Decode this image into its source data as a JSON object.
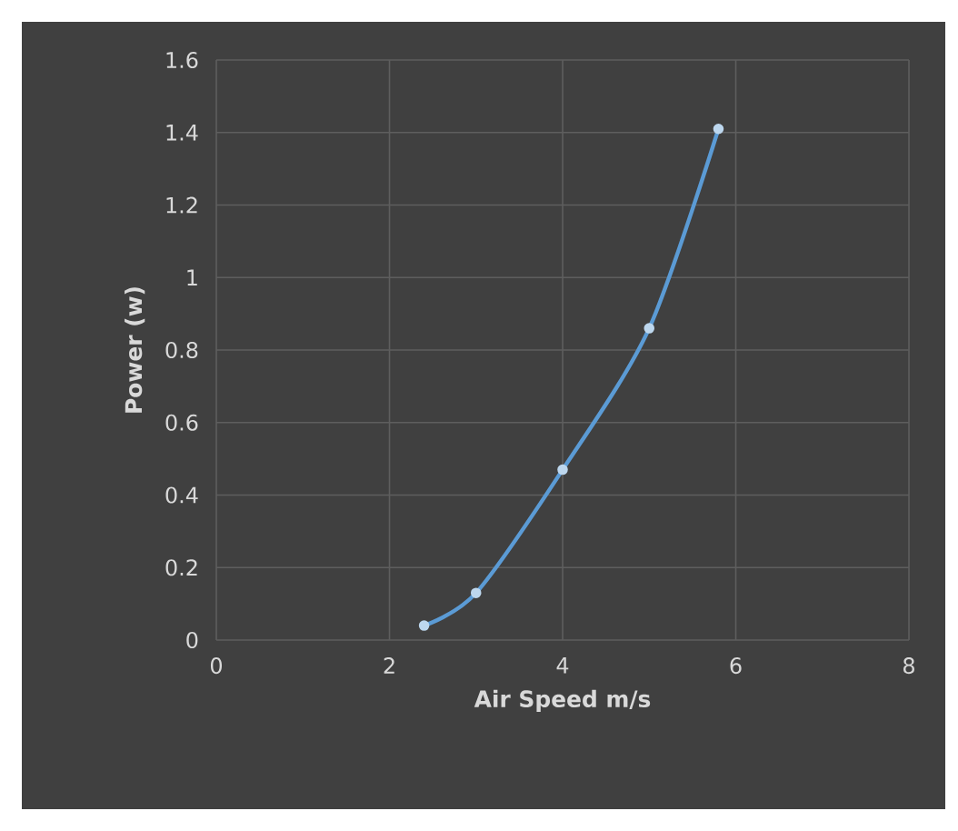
{
  "chart_data": {
    "type": "line",
    "xlabel": "Air Speed m/s",
    "ylabel": "Power (w)",
    "x": [
      2.4,
      3,
      4,
      5,
      5.8
    ],
    "series": [
      {
        "color": "#5b9bd5",
        "values": [
          0.04,
          0.13,
          0.47,
          0.86,
          1.41
        ]
      }
    ],
    "xlim": [
      0,
      8
    ],
    "ylim": [
      0,
      1.6
    ],
    "xticks": [
      0,
      2,
      4,
      6,
      8
    ],
    "yticks": [
      0,
      0.2,
      0.4,
      0.6,
      0.8,
      1,
      1.2,
      1.4,
      1.6
    ],
    "grid": true,
    "marker": "circle",
    "line_style": "solid"
  }
}
